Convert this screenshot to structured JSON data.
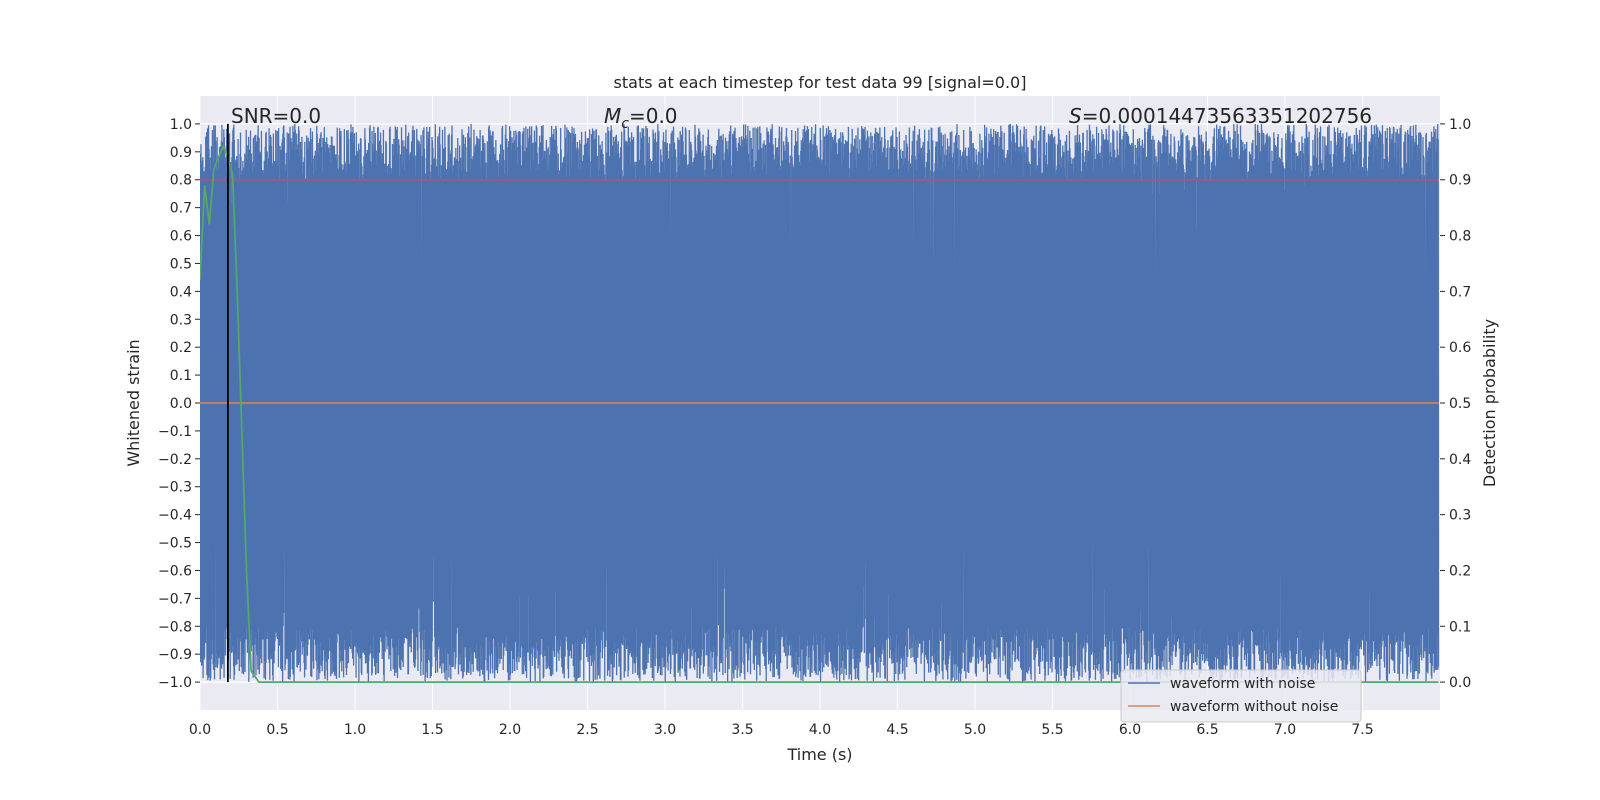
{
  "chart_data": {
    "type": "line",
    "title": "stats at each timestep for test data 99 [signal=0.0]",
    "xlabel": "Time (s)",
    "ylabel": "Whitened strain",
    "y2label": "Detection probability",
    "xlim": [
      0.0,
      8.0
    ],
    "ylim": [
      -1.1,
      1.1
    ],
    "y2lim": [
      -0.05,
      1.05
    ],
    "xticks": [
      "0.0",
      "0.5",
      "1.0",
      "1.5",
      "2.0",
      "2.5",
      "3.0",
      "3.5",
      "4.0",
      "4.5",
      "5.0",
      "5.5",
      "6.0",
      "6.5",
      "7.0",
      "7.5"
    ],
    "yticks": [
      "1.0",
      "0.9",
      "0.8",
      "0.7",
      "0.6",
      "0.5",
      "0.4",
      "0.3",
      "0.2",
      "0.1",
      "0.0",
      "−0.1",
      "−0.2",
      "−0.3",
      "−0.4",
      "−0.5",
      "−0.6",
      "−0.7",
      "−0.8",
      "−0.9",
      "−1.0"
    ],
    "y2ticks": [
      "1.0",
      "0.9",
      "0.8",
      "0.7",
      "0.6",
      "0.5",
      "0.4",
      "0.3",
      "0.2",
      "0.1",
      "0.0"
    ],
    "grid": true,
    "annotations": {
      "snr": "SNR=0.0",
      "mc_symbol": "M",
      "mc_sub": "c",
      "mc_value": "=0.0",
      "s_symbol": "S",
      "s_value": "=0.00014473563351202756"
    },
    "series": [
      {
        "name": "waveform with noise",
        "color": "#4c72b0",
        "axis": "left",
        "description_kind": "dense noise spanning nearly the full range",
        "range": [
          -1.0,
          1.0
        ],
        "x_range": [
          0.0,
          7.99
        ]
      },
      {
        "name": "waveform without noise",
        "color": "#dd8452",
        "axis": "left",
        "x": [
          0.0,
          7.99
        ],
        "y": [
          0.0,
          0.0
        ]
      },
      {
        "axis": "right",
        "color": "#55a868",
        "x": [
          0.0,
          0.03,
          0.06,
          0.09,
          0.12,
          0.15,
          0.18,
          0.21,
          0.24,
          0.27,
          0.3,
          0.33,
          0.38,
          0.5,
          1.0,
          2.0,
          3.0,
          4.0,
          5.0,
          6.0,
          7.0,
          7.99
        ],
        "y": [
          0.72,
          0.89,
          0.82,
          0.92,
          0.94,
          0.96,
          0.94,
          0.91,
          0.7,
          0.45,
          0.2,
          0.02,
          0.0,
          0.0,
          0.0,
          0.0,
          0.0,
          0.0,
          0.0,
          0.0,
          0.0,
          0.0
        ]
      },
      {
        "axis": "right",
        "color": "#c44e52",
        "x": [
          0.0,
          7.99
        ],
        "y": [
          0.9,
          0.9
        ]
      }
    ],
    "vertical_line": {
      "x": 0.18,
      "color": "#000000",
      "range": [
        -1.0,
        1.0
      ]
    },
    "legend": {
      "placement": "lower-right",
      "entries": [
        "waveform with noise",
        "waveform without noise"
      ]
    }
  }
}
